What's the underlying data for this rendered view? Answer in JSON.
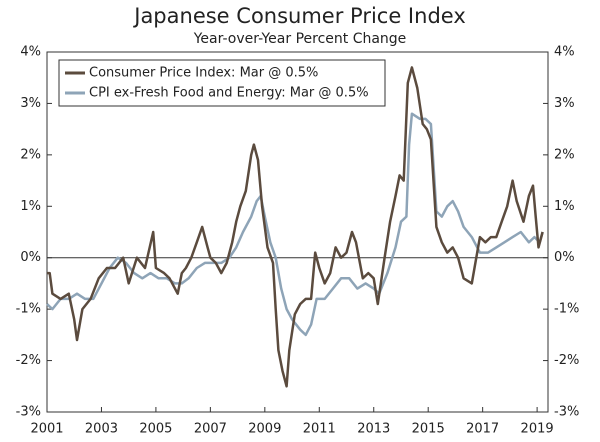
{
  "chart_data": {
    "type": "line",
    "title": "Japanese Consumer Price Index",
    "subtitle": "Year-over-Year Percent Change",
    "xlim": [
      2001,
      2019.4
    ],
    "xticks": [
      2001,
      2003,
      2005,
      2007,
      2009,
      2011,
      2013,
      2015,
      2017,
      2019
    ],
    "ylim": [
      -3,
      4
    ],
    "yticks": [
      {
        "value": 4,
        "label": "4%"
      },
      {
        "value": 3,
        "label": "3%"
      },
      {
        "value": 2,
        "label": "2%"
      },
      {
        "value": 1,
        "label": "1%"
      },
      {
        "value": 0,
        "label": "0%"
      },
      {
        "value": -1,
        "label": "-1%"
      },
      {
        "value": -2,
        "label": "-2%"
      },
      {
        "value": -3,
        "label": "-3%"
      }
    ],
    "y2lim": [
      -3,
      4
    ],
    "legend": "upper left",
    "series": [
      {
        "name": "Consumer Price Index: Mar @ 0.5%",
        "color": "#5b4b3e",
        "x": [
          2001.0,
          2001.1,
          2001.2,
          2001.5,
          2001.8,
          2002.0,
          2002.1,
          2002.3,
          2002.6,
          2002.9,
          2003.2,
          2003.5,
          2003.8,
          2004.0,
          2004.3,
          2004.6,
          2004.9,
          2005.0,
          2005.3,
          2005.5,
          2005.8,
          2005.95,
          2006.1,
          2006.3,
          2006.5,
          2006.7,
          2006.9,
          2007.0,
          2007.2,
          2007.4,
          2007.6,
          2007.8,
          2007.95,
          2008.1,
          2008.3,
          2008.5,
          2008.6,
          2008.75,
          2008.9,
          2009.1,
          2009.3,
          2009.4,
          2009.5,
          2009.65,
          2009.8,
          2009.9,
          2010.1,
          2010.3,
          2010.5,
          2010.7,
          2010.85,
          2011.0,
          2011.2,
          2011.4,
          2011.6,
          2011.8,
          2012.0,
          2012.2,
          2012.35,
          2012.6,
          2012.8,
          2013.0,
          2013.15,
          2013.4,
          2013.6,
          2013.8,
          2013.95,
          2014.1,
          2014.25,
          2014.4,
          2014.6,
          2014.8,
          2014.95,
          2015.1,
          2015.3,
          2015.5,
          2015.7,
          2015.9,
          2016.1,
          2016.3,
          2016.6,
          2016.9,
          2017.1,
          2017.3,
          2017.5,
          2017.7,
          2017.9,
          2018.1,
          2018.25,
          2018.5,
          2018.7,
          2018.85,
          2018.95,
          2019.05,
          2019.2
        ],
        "values": [
          -0.3,
          -0.3,
          -0.7,
          -0.8,
          -0.7,
          -1.2,
          -1.6,
          -1.0,
          -0.8,
          -0.4,
          -0.2,
          -0.2,
          0.0,
          -0.5,
          0.0,
          -0.2,
          0.5,
          -0.2,
          -0.3,
          -0.4,
          -0.7,
          -0.3,
          -0.2,
          0.0,
          0.3,
          0.6,
          0.2,
          0.0,
          -0.1,
          -0.3,
          -0.1,
          0.3,
          0.7,
          1.0,
          1.3,
          2.0,
          2.2,
          1.9,
          1.0,
          0.2,
          -0.1,
          -1.0,
          -1.8,
          -2.2,
          -2.5,
          -1.8,
          -1.1,
          -0.9,
          -0.8,
          -0.8,
          0.1,
          -0.2,
          -0.5,
          -0.3,
          0.2,
          0.0,
          0.1,
          0.5,
          0.3,
          -0.4,
          -0.3,
          -0.4,
          -0.9,
          0.0,
          0.7,
          1.2,
          1.6,
          1.5,
          3.4,
          3.7,
          3.3,
          2.6,
          2.5,
          2.3,
          0.6,
          0.3,
          0.1,
          0.2,
          0.0,
          -0.4,
          -0.5,
          0.4,
          0.3,
          0.4,
          0.4,
          0.7,
          1.0,
          1.5,
          1.1,
          0.7,
          1.2,
          1.4,
          0.8,
          0.2,
          0.5
        ]
      },
      {
        "name": "CPI ex-Fresh Food and Energy: Mar @ 0.5%",
        "color": "#8ea4b7",
        "x": [
          2001.0,
          2001.2,
          2001.5,
          2001.8,
          2002.1,
          2002.4,
          2002.7,
          2003.0,
          2003.3,
          2003.6,
          2003.9,
          2004.2,
          2004.5,
          2004.8,
          2005.1,
          2005.4,
          2005.7,
          2005.95,
          2006.2,
          2006.5,
          2006.8,
          2007.1,
          2007.4,
          2007.7,
          2007.95,
          2008.2,
          2008.5,
          2008.7,
          2008.85,
          2009.0,
          2009.2,
          2009.4,
          2009.6,
          2009.8,
          2010.0,
          2010.3,
          2010.5,
          2010.7,
          2010.9,
          2011.2,
          2011.5,
          2011.8,
          2012.1,
          2012.4,
          2012.7,
          2013.0,
          2013.2,
          2013.5,
          2013.8,
          2014.0,
          2014.2,
          2014.3,
          2014.4,
          2014.7,
          2014.9,
          2015.1,
          2015.3,
          2015.5,
          2015.7,
          2015.9,
          2016.1,
          2016.3,
          2016.6,
          2016.9,
          2017.2,
          2017.5,
          2017.8,
          2018.1,
          2018.4,
          2018.7,
          2018.9,
          2019.1,
          2019.2
        ],
        "values": [
          -0.9,
          -1.0,
          -0.8,
          -0.8,
          -0.7,
          -0.8,
          -0.8,
          -0.5,
          -0.2,
          0.0,
          -0.1,
          -0.3,
          -0.4,
          -0.3,
          -0.4,
          -0.4,
          -0.5,
          -0.5,
          -0.4,
          -0.2,
          -0.1,
          -0.1,
          -0.1,
          0.0,
          0.2,
          0.5,
          0.8,
          1.1,
          1.2,
          0.8,
          0.3,
          0.0,
          -0.6,
          -1.0,
          -1.2,
          -1.4,
          -1.5,
          -1.3,
          -0.8,
          -0.8,
          -0.6,
          -0.4,
          -0.4,
          -0.6,
          -0.5,
          -0.6,
          -0.7,
          -0.3,
          0.2,
          0.7,
          0.8,
          2.2,
          2.8,
          2.7,
          2.7,
          2.6,
          0.9,
          0.8,
          1.0,
          1.1,
          0.9,
          0.6,
          0.4,
          0.1,
          0.1,
          0.2,
          0.3,
          0.4,
          0.5,
          0.3,
          0.4,
          0.3,
          0.5
        ]
      }
    ]
  }
}
